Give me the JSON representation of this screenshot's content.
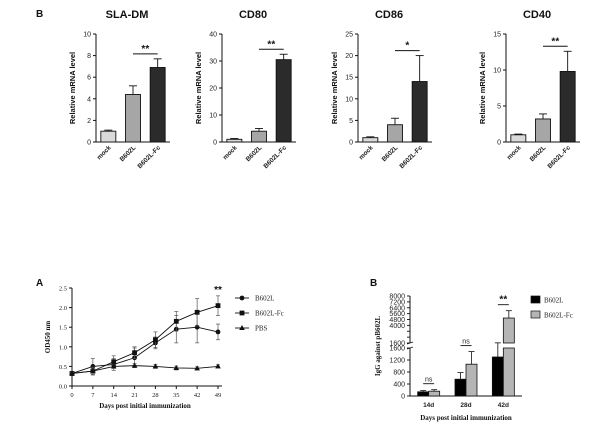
{
  "panel_labels": {
    "top": "B",
    "line": "A",
    "grouped": "B"
  },
  "chart_data": [
    {
      "type": "bar",
      "title": "SLA-DM",
      "ylabel": "Relative mRNA level",
      "categories": [
        "mock",
        "B602L",
        "B602L-Fc"
      ],
      "values": [
        1.0,
        4.4,
        6.9
      ],
      "errors": [
        0.1,
        0.8,
        0.8
      ],
      "fills": [
        "#d9d9d9",
        "#a6a6a6",
        "#2b2b2b"
      ],
      "ylim": [
        0,
        10
      ],
      "yticks": [
        0,
        2,
        4,
        6,
        8,
        10
      ],
      "significance": [
        {
          "from": 1,
          "to": 2,
          "label": "**"
        }
      ]
    },
    {
      "type": "bar",
      "title": "CD80",
      "ylabel": "Relative mRNA level",
      "categories": [
        "mock",
        "B602L",
        "B602L-Fc"
      ],
      "values": [
        1.0,
        4.0,
        30.5
      ],
      "errors": [
        0.3,
        1.0,
        2.0
      ],
      "fills": [
        "#d9d9d9",
        "#a6a6a6",
        "#2b2b2b"
      ],
      "ylim": [
        0,
        40
      ],
      "yticks": [
        0,
        10,
        20,
        30,
        40
      ],
      "significance": [
        {
          "from": 1,
          "to": 2,
          "label": "**"
        }
      ]
    },
    {
      "type": "bar",
      "title": "CD86",
      "ylabel": "Relative mRNA level",
      "categories": [
        "mock",
        "B602L",
        "B602L-Fc"
      ],
      "values": [
        1.0,
        4.0,
        14.0
      ],
      "errors": [
        0.2,
        1.5,
        6.0
      ],
      "fills": [
        "#d9d9d9",
        "#a6a6a6",
        "#2b2b2b"
      ],
      "ylim": [
        0,
        25
      ],
      "yticks": [
        0,
        5,
        10,
        15,
        20,
        25
      ],
      "significance": [
        {
          "from": 1,
          "to": 2,
          "label": "*"
        }
      ]
    },
    {
      "type": "bar",
      "title": "CD40",
      "ylabel": "Relative mRNA level",
      "categories": [
        "mock",
        "B602L",
        "B602L-Fc"
      ],
      "values": [
        1.0,
        3.2,
        9.8
      ],
      "errors": [
        0.1,
        0.7,
        2.8
      ],
      "fills": [
        "#d9d9d9",
        "#a6a6a6",
        "#2b2b2b"
      ],
      "ylim": [
        0,
        15
      ],
      "yticks": [
        0,
        5,
        10,
        15
      ],
      "significance": [
        {
          "from": 1,
          "to": 2,
          "label": "**"
        }
      ]
    },
    {
      "type": "line",
      "xlabel": "Days post initial immunization",
      "ylabel": "OD450 nm",
      "x": [
        0,
        7,
        14,
        21,
        28,
        35,
        42,
        49
      ],
      "xlim": [
        0,
        49
      ],
      "ylim": [
        0,
        2.5
      ],
      "yticks": [
        0.0,
        0.5,
        1.0,
        1.5,
        2.0,
        2.5
      ],
      "series": [
        {
          "name": "B602L",
          "marker": "circle",
          "values": [
            0.32,
            0.5,
            0.55,
            0.72,
            1.1,
            1.45,
            1.5,
            1.38
          ],
          "errors": [
            0.05,
            0.2,
            0.15,
            0.25,
            0.15,
            0.35,
            0.4,
            0.2
          ]
        },
        {
          "name": "B602L-Fc",
          "marker": "square",
          "values": [
            0.32,
            0.38,
            0.62,
            0.85,
            1.18,
            1.65,
            1.88,
            2.05
          ],
          "errors": [
            0.05,
            0.1,
            0.15,
            0.15,
            0.2,
            0.25,
            0.35,
            0.25
          ]
        },
        {
          "name": "PBS",
          "marker": "triangle",
          "values": [
            0.32,
            0.38,
            0.5,
            0.52,
            0.5,
            0.46,
            0.45,
            0.5
          ],
          "errors": [
            0.03,
            0.05,
            0.05,
            0.05,
            0.05,
            0.05,
            0.04,
            0.04
          ]
        }
      ],
      "annotations": [
        {
          "x": 49,
          "label": "**"
        }
      ]
    },
    {
      "type": "bar",
      "xlabel": "Days post initial immunization",
      "ylabel": "IgG against pB602L",
      "categories": [
        "14d",
        "28d",
        "42d"
      ],
      "series": [
        {
          "name": "B602L",
          "fill": "#000000",
          "values": [
            140,
            560,
            1300
          ],
          "errors": [
            40,
            220,
            320
          ]
        },
        {
          "name": "B602L-Fc",
          "fill": "#b5b5b5",
          "values": [
            160,
            1060,
            5000
          ],
          "errors": [
            50,
            420,
            1000
          ]
        }
      ],
      "axis_break": {
        "lower": [
          0,
          1600
        ],
        "upper": [
          1600,
          8000
        ]
      },
      "yticks_lower": [
        0,
        400,
        800,
        1200,
        1600
      ],
      "yticks_upper": [
        1600,
        2400,
        3200,
        4000,
        4800,
        5600,
        6400,
        7200,
        8000
      ],
      "ytick_labels_upper": [
        1600,
        4000,
        4800,
        5600,
        6400,
        7200,
        8000
      ],
      "significance": [
        {
          "category": 0,
          "label": "ns"
        },
        {
          "category": 1,
          "label": "ns"
        },
        {
          "category": 2,
          "label": "**"
        }
      ]
    }
  ]
}
